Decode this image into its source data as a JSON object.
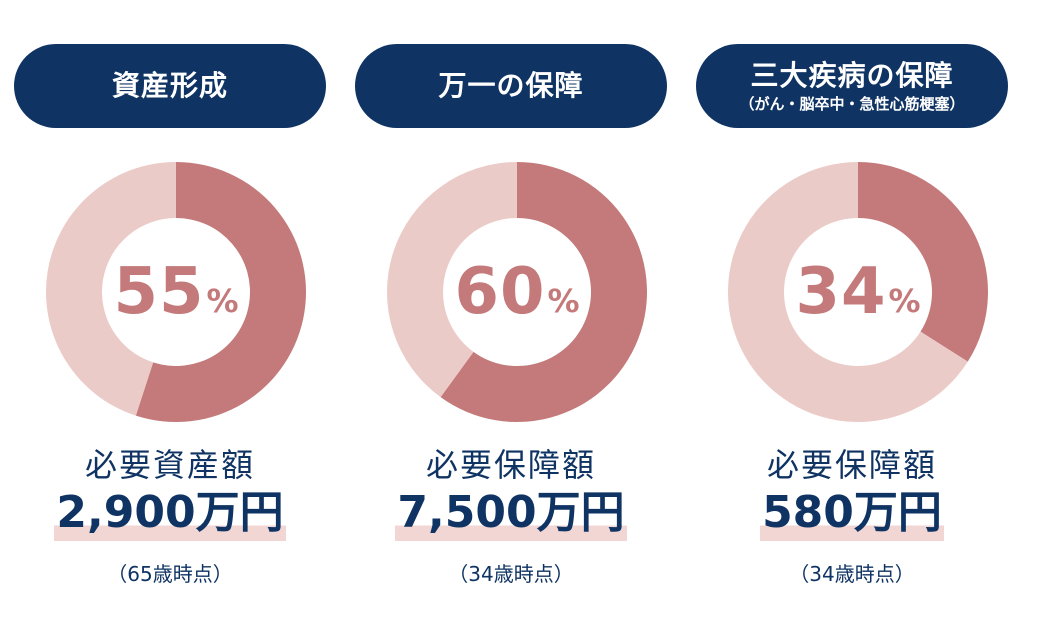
{
  "colors": {
    "navy": "#0f3363",
    "primary": "#c47a7a",
    "track": "#ebcbc7",
    "highlight": "#f2d6d3"
  },
  "chart_data": [
    {
      "type": "pie",
      "title": "資産形成",
      "subtitle": "",
      "values": [
        55,
        45
      ],
      "percent_label": "55",
      "percent_sign": "%",
      "required_label": "必要資産額",
      "amount": "2,900万円",
      "note": "（65歳時点）"
    },
    {
      "type": "pie",
      "title": "万一の保障",
      "subtitle": "",
      "values": [
        60,
        40
      ],
      "percent_label": "60",
      "percent_sign": "%",
      "required_label": "必要保障額",
      "amount": "7,500万円",
      "note": "（34歳時点）"
    },
    {
      "type": "pie",
      "title": "三大疾病の保障",
      "subtitle": "（がん・脳卒中・急性心筋梗塞）",
      "values": [
        34,
        66
      ],
      "percent_label": "34",
      "percent_sign": "%",
      "required_label": "必要保障額",
      "amount": "580万円",
      "note": "（34歳時点）"
    }
  ]
}
